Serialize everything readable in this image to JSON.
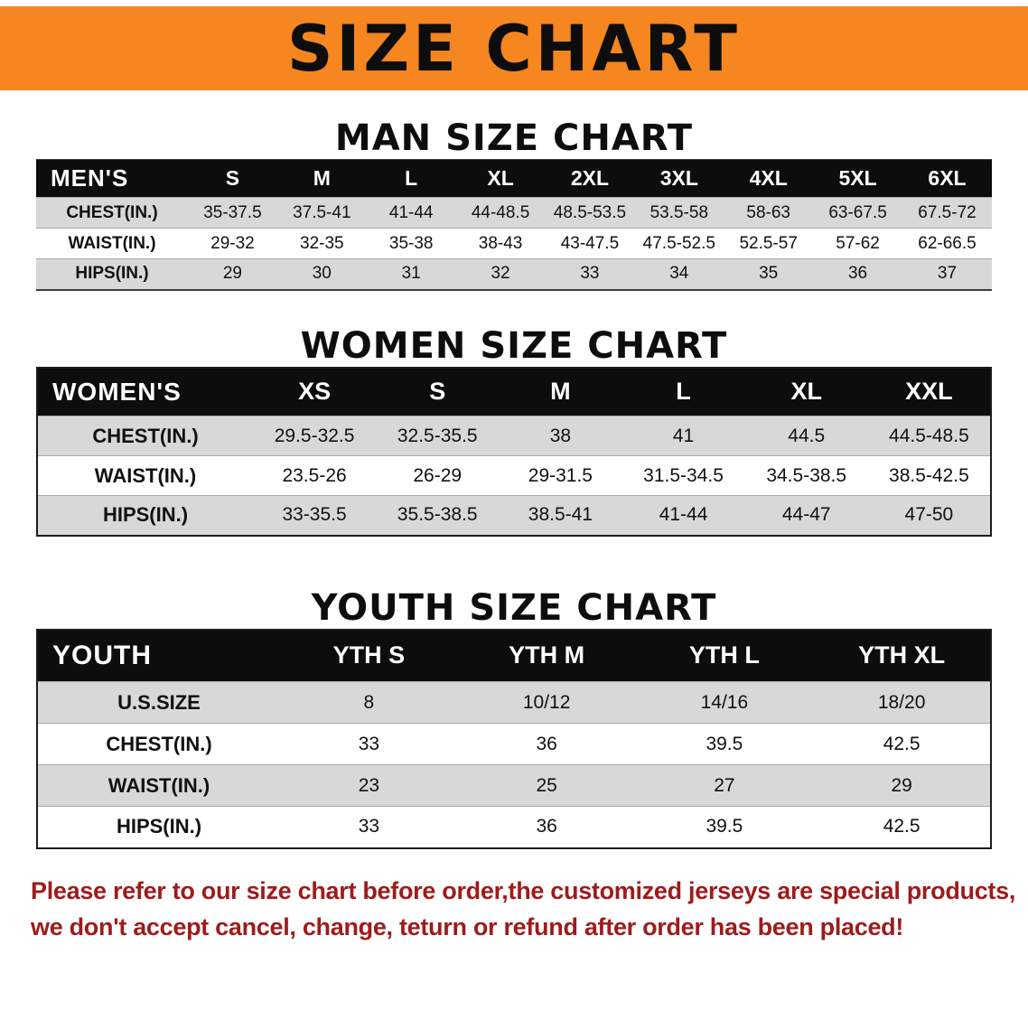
{
  "banner": {
    "title": "SIZE CHART"
  },
  "colors": {
    "banner_bg": "#f6861f",
    "table_header_bg": "#0d0d0d",
    "row_stripe": "#d8d8d8",
    "disclaimer_text": "#9e1b1b"
  },
  "men": {
    "heading": "MAN SIZE CHART",
    "label": "MEN'S",
    "columns": [
      "S",
      "M",
      "L",
      "XL",
      "2XL",
      "3XL",
      "4XL",
      "5XL",
      "6XL"
    ],
    "rows": [
      {
        "label": "CHEST(IN.)",
        "values": [
          "35-37.5",
          "37.5-41",
          "41-44",
          "44-48.5",
          "48.5-53.5",
          "53.5-58",
          "58-63",
          "63-67.5",
          "67.5-72"
        ]
      },
      {
        "label": "WAIST(IN.)",
        "values": [
          "29-32",
          "32-35",
          "35-38",
          "38-43",
          "43-47.5",
          "47.5-52.5",
          "52.5-57",
          "57-62",
          "62-66.5"
        ]
      },
      {
        "label": "HIPS(IN.)",
        "values": [
          "29",
          "30",
          "31",
          "32",
          "33",
          "34",
          "35",
          "36",
          "37"
        ]
      }
    ]
  },
  "women": {
    "heading": "WOMEN SIZE CHART",
    "label": "WOMEN'S",
    "columns": [
      "XS",
      "S",
      "M",
      "L",
      "XL",
      "XXL"
    ],
    "rows": [
      {
        "label": "CHEST(IN.)",
        "values": [
          "29.5-32.5",
          "32.5-35.5",
          "38",
          "41",
          "44.5",
          "44.5-48.5"
        ]
      },
      {
        "label": "WAIST(IN.)",
        "values": [
          "23.5-26",
          "26-29",
          "29-31.5",
          "31.5-34.5",
          "34.5-38.5",
          "38.5-42.5"
        ]
      },
      {
        "label": "HIPS(IN.)",
        "values": [
          "33-35.5",
          "35.5-38.5",
          "38.5-41",
          "41-44",
          "44-47",
          "47-50"
        ]
      }
    ]
  },
  "youth": {
    "heading": "YOUTH SIZE CHART",
    "label": "YOUTH",
    "columns": [
      "YTH S",
      "YTH M",
      "YTH L",
      "YTH XL"
    ],
    "rows": [
      {
        "label": "U.S.SIZE",
        "values": [
          "8",
          "10/12",
          "14/16",
          "18/20"
        ]
      },
      {
        "label": "CHEST(IN.)",
        "values": [
          "33",
          "36",
          "39.5",
          "42.5"
        ]
      },
      {
        "label": "WAIST(IN.)",
        "values": [
          "23",
          "25",
          "27",
          "29"
        ]
      },
      {
        "label": "HIPS(IN.)",
        "values": [
          "33",
          "36",
          "39.5",
          "42.5"
        ]
      }
    ]
  },
  "disclaimer": {
    "line1": "Please refer to our size chart before order,the customized jerseys are special products,",
    "line2": "we don't accept cancel, change, teturn or refund after order has been placed!"
  }
}
